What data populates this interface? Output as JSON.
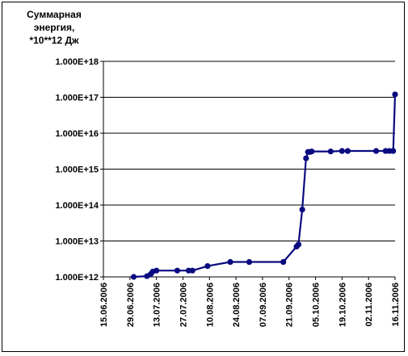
{
  "chart_data": {
    "type": "line",
    "ylabel_lines": [
      "Суммарная",
      "энергия,",
      "*10**12 Дж"
    ],
    "xlabel": "",
    "yscale": "log",
    "ylim": [
      1000000000000.0,
      1e+18
    ],
    "y_tick_labels": [
      "1.000E+12",
      "1.000E+13",
      "1.000E+14",
      "1.000E+15",
      "1.000E+16",
      "1.000E+17",
      "1.000E+18"
    ],
    "xlim": [
      "2006-06-15",
      "2006-11-16"
    ],
    "x_tick_labels": [
      "15.06.2006",
      "29.06.2006",
      "13.07.2006",
      "27.07.2006",
      "10.08.2006",
      "24.08.2006",
      "07.09.2006",
      "21.09.2006",
      "05.10.2006",
      "19.10.2006",
      "02.11.2006",
      "16.11.2006"
    ],
    "grid": true,
    "legend": "none",
    "series": [
      {
        "color": "#0a0a80",
        "points": [
          [
            "2006-07-01",
            1000000000000.0
          ],
          [
            "2006-07-08",
            1050000000000.0
          ],
          [
            "2006-07-10",
            1200000000000.0
          ],
          [
            "2006-07-11",
            1400000000000.0
          ],
          [
            "2006-07-13",
            1500000000000.0
          ],
          [
            "2006-07-24",
            1500000000000.0
          ],
          [
            "2006-07-30",
            1500000000000.0
          ],
          [
            "2006-08-01",
            1500000000000.0
          ],
          [
            "2006-08-09",
            2000000000000.0
          ],
          [
            "2006-08-21",
            2600000000000.0
          ],
          [
            "2006-08-31",
            2600000000000.0
          ],
          [
            "2006-09-18",
            2600000000000.0
          ],
          [
            "2006-09-25",
            7000000000000.0
          ],
          [
            "2006-09-26",
            8000000000000.0
          ],
          [
            "2006-09-28",
            75000000000000.0
          ],
          [
            "2006-09-30",
            2000000000000000.0
          ],
          [
            "2006-10-01",
            3000000000000000.0
          ],
          [
            "2006-10-02",
            3000000000000000.0
          ],
          [
            "2006-10-03",
            3100000000000000.0
          ],
          [
            "2006-10-13",
            3100000000000000.0
          ],
          [
            "2006-10-19",
            3200000000000000.0
          ],
          [
            "2006-10-22",
            3200000000000000.0
          ],
          [
            "2006-11-06",
            3200000000000000.0
          ],
          [
            "2006-11-11",
            3200000000000000.0
          ],
          [
            "2006-11-13",
            3200000000000000.0
          ],
          [
            "2006-11-15",
            3200000000000000.0
          ],
          [
            "2006-11-16",
            1.2e+17
          ]
        ]
      }
    ]
  }
}
